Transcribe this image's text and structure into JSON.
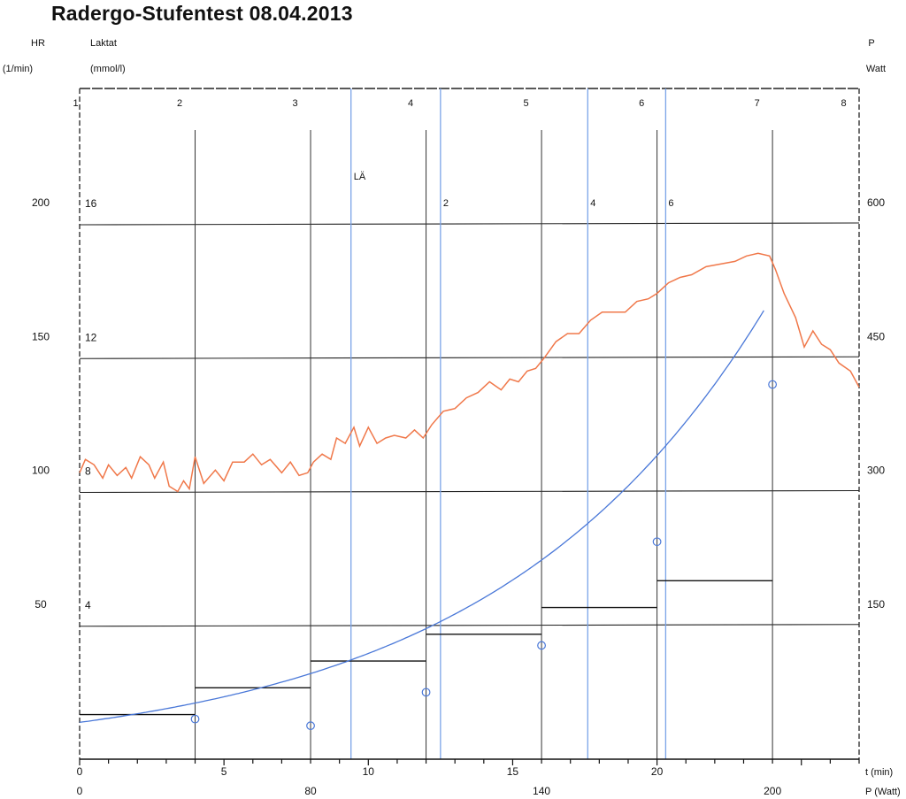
{
  "header": {
    "title": "Radergo-Stufentest   08.04.2013"
  },
  "chart_data": {
    "type": "line",
    "title": "Radergo-Stufentest   08.04.2013",
    "axes": {
      "hr": {
        "label": "HR",
        "unit": "(1/min)",
        "ticks": [
          "50",
          "100",
          "150",
          "200"
        ]
      },
      "lactate": {
        "label": "Laktat",
        "unit": "(mmol/l)",
        "ticks": [
          "4",
          "8",
          "12",
          "16"
        ]
      },
      "power_right": {
        "label": "P",
        "unit": "Watt",
        "ticks": [
          "150",
          "300",
          "450",
          "600"
        ]
      },
      "time": {
        "label": "t (min)",
        "ticks": [
          "0",
          "5",
          "10",
          "15",
          "20"
        ],
        "range": [
          0,
          27
        ]
      },
      "power_bottom": {
        "label": "P (Watt)",
        "ticks": [
          "0",
          "80",
          "140",
          "200"
        ]
      }
    },
    "hr_range": [
      0,
      200
    ],
    "stages": [
      "1",
      "2",
      "3",
      "4",
      "5",
      "6",
      "7",
      "8"
    ],
    "stage_boundaries_min": [
      4,
      8,
      12,
      16,
      20,
      24
    ],
    "threshold_lines": [
      {
        "label": "LÄ",
        "t": 9.4
      },
      {
        "label": "2",
        "t": 12.5
      },
      {
        "label": "4",
        "t": 17.6
      },
      {
        "label": "6",
        "t": 20.3
      }
    ],
    "power_steps": [
      {
        "t0": 0,
        "t1": 4,
        "watt": 50
      },
      {
        "t0": 4,
        "t1": 8,
        "watt": 80
      },
      {
        "t0": 8,
        "t1": 12,
        "watt": 110
      },
      {
        "t0": 12,
        "t1": 16,
        "watt": 140
      },
      {
        "t0": 16,
        "t1": 20,
        "watt": 170
      },
      {
        "t0": 20,
        "t1": 24,
        "watt": 200
      }
    ],
    "series": [
      {
        "name": "HR",
        "color": "#f0784a",
        "x": [
          0,
          0.2,
          0.5,
          0.8,
          1,
          1.3,
          1.6,
          1.8,
          2.1,
          2.4,
          2.6,
          2.9,
          3.1,
          3.4,
          3.6,
          3.8,
          4,
          4.3,
          4.7,
          5,
          5.3,
          5.7,
          6,
          6.3,
          6.6,
          7,
          7.3,
          7.6,
          7.9,
          8.1,
          8.4,
          8.7,
          8.9,
          9.2,
          9.5,
          9.7,
          10,
          10.3,
          10.6,
          10.9,
          11.3,
          11.6,
          11.9,
          12.2,
          12.6,
          13,
          13.4,
          13.8,
          14.2,
          14.6,
          14.9,
          15.2,
          15.5,
          15.8,
          16.1,
          16.5,
          16.9,
          17.3,
          17.7,
          18.1,
          18.5,
          18.9,
          19.3,
          19.7,
          20,
          20.4,
          20.8,
          21.2,
          21.7,
          22.2,
          22.7,
          23.1,
          23.5,
          23.9,
          24.1,
          24.4,
          24.8,
          25.1,
          25.4,
          25.7,
          26,
          26.3,
          26.7,
          27
        ],
        "y": [
          107,
          112,
          110,
          105,
          110,
          106,
          109,
          105,
          113,
          110,
          105,
          111,
          102,
          100,
          104,
          101,
          113,
          103,
          108,
          104,
          111,
          111,
          114,
          110,
          112,
          107,
          111,
          106,
          107,
          111,
          114,
          112,
          120,
          118,
          124,
          117,
          124,
          118,
          120,
          121,
          120,
          123,
          120,
          125,
          130,
          131,
          135,
          137,
          141,
          138,
          142,
          141,
          145,
          146,
          150,
          156,
          159,
          159,
          164,
          167,
          167,
          167,
          171,
          172,
          174,
          178,
          180,
          181,
          184,
          185,
          186,
          188,
          189,
          188,
          183,
          174,
          165,
          154,
          160,
          155,
          153,
          148,
          145,
          139
        ]
      },
      {
        "name": "Laktat",
        "color": "#4a78d8",
        "points_t": [
          4,
          8,
          12,
          16,
          20,
          24
        ],
        "points_mmol": [
          1.2,
          1.0,
          2.0,
          3.4,
          6.5,
          11.2
        ],
        "fit": {
          "a": 1.1004,
          "b": 0.1055,
          "y0": 0,
          "t_range": [
            0,
            23.7
          ]
        }
      }
    ],
    "grid": true
  }
}
